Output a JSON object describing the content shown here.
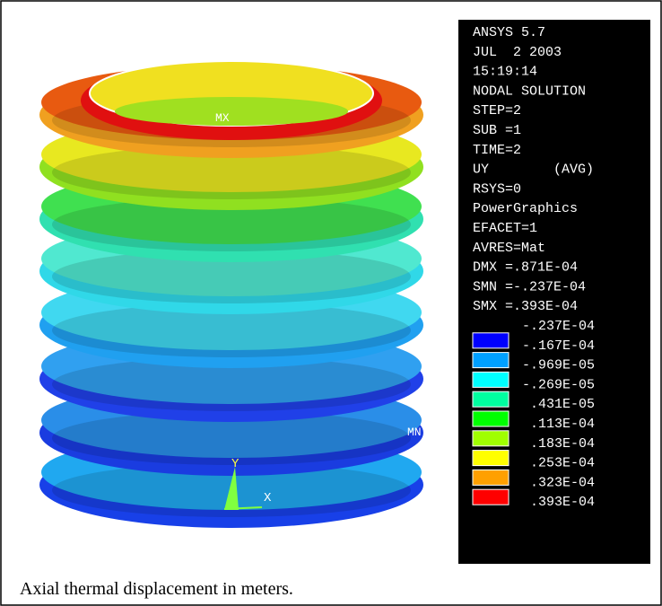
{
  "panel": {
    "lines": [
      "ANSYS 5.7",
      "JUL  2 2003",
      "15:19:14",
      "NODAL SOLUTION",
      "STEP=2",
      "SUB =1",
      "TIME=2",
      "UY        (AVG)",
      "RSYS=0",
      "PowerGraphics",
      "EFACET=1",
      "AVRES=Mat",
      "DMX =.871E-04",
      "SMN =-.237E-04",
      "SMX =.393E-04"
    ],
    "legend": [
      "-.237E-04",
      "-.167E-04",
      "-.969E-05",
      "-.269E-05",
      ".431E-05",
      ".113E-04",
      ".183E-04",
      ".253E-04",
      ".323E-04",
      ".393E-04"
    ]
  },
  "image_labels": {
    "max": "MX",
    "min": "MN",
    "axis_y": "Y",
    "axis_x": "X"
  },
  "caption": "Axial thermal displacement in meters."
}
